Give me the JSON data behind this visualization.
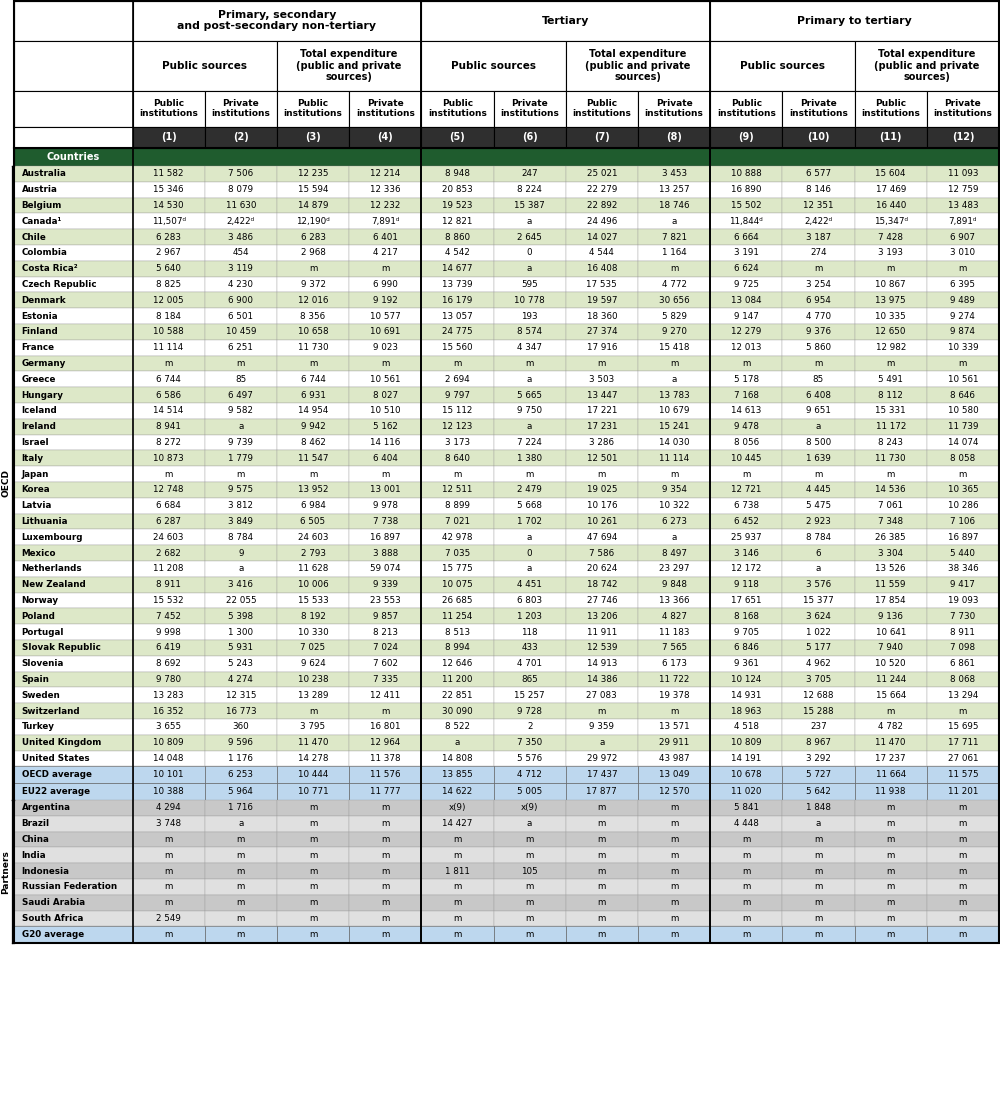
{
  "oecd_rows": [
    [
      "Australia",
      "11 582",
      "7 506",
      "12 235",
      "12 214",
      "8 948",
      "247",
      "25 021",
      "3 453",
      "10 888",
      "6 577",
      "15 604",
      "11 093"
    ],
    [
      "Austria",
      "15 346",
      "8 079",
      "15 594",
      "12 336",
      "20 853",
      "8 224",
      "22 279",
      "13 257",
      "16 890",
      "8 146",
      "17 469",
      "12 759"
    ],
    [
      "Belgium",
      "14 530",
      "11 630",
      "14 879",
      "12 232",
      "19 523",
      "15 387",
      "22 892",
      "18 746",
      "15 502",
      "12 351",
      "16 440",
      "13 483"
    ],
    [
      "Canada¹",
      "11,507ᵈ",
      "2,422ᵈ",
      "12,190ᵈ",
      "7,891ᵈ",
      "12 821",
      "a",
      "24 496",
      "a",
      "11,844ᵈ",
      "2,422ᵈ",
      "15,347ᵈ",
      "7,891ᵈ"
    ],
    [
      "Chile",
      "6 283",
      "3 486",
      "6 283",
      "6 401",
      "8 860",
      "2 645",
      "14 027",
      "7 821",
      "6 664",
      "3 187",
      "7 428",
      "6 907"
    ],
    [
      "Colombia",
      "2 967",
      "454",
      "2 968",
      "4 217",
      "4 542",
      "0",
      "4 544",
      "1 164",
      "3 191",
      "274",
      "3 193",
      "3 010"
    ],
    [
      "Costa Rica²",
      "5 640",
      "3 119",
      "m",
      "m",
      "14 677",
      "a",
      "16 408",
      "m",
      "6 624",
      "m",
      "m",
      "m"
    ],
    [
      "Czech Republic",
      "8 825",
      "4 230",
      "9 372",
      "6 990",
      "13 739",
      "595",
      "17 535",
      "4 772",
      "9 725",
      "3 254",
      "10 867",
      "6 395"
    ],
    [
      "Denmark",
      "12 005",
      "6 900",
      "12 016",
      "9 192",
      "16 179",
      "10 778",
      "19 597",
      "30 656",
      "13 084",
      "6 954",
      "13 975",
      "9 489"
    ],
    [
      "Estonia",
      "8 184",
      "6 501",
      "8 356",
      "10 577",
      "13 057",
      "193",
      "18 360",
      "5 829",
      "9 147",
      "4 770",
      "10 335",
      "9 274"
    ],
    [
      "Finland",
      "10 588",
      "10 459",
      "10 658",
      "10 691",
      "24 775",
      "8 574",
      "27 374",
      "9 270",
      "12 279",
      "9 376",
      "12 650",
      "9 874"
    ],
    [
      "France",
      "11 114",
      "6 251",
      "11 730",
      "9 023",
      "15 560",
      "4 347",
      "17 916",
      "15 418",
      "12 013",
      "5 860",
      "12 982",
      "10 339"
    ],
    [
      "Germany",
      "m",
      "m",
      "m",
      "m",
      "m",
      "m",
      "m",
      "m",
      "m",
      "m",
      "m",
      "m"
    ],
    [
      "Greece",
      "6 744",
      "85",
      "6 744",
      "10 561",
      "2 694",
      "a",
      "3 503",
      "a",
      "5 178",
      "85",
      "5 491",
      "10 561"
    ],
    [
      "Hungary",
      "6 586",
      "6 497",
      "6 931",
      "8 027",
      "9 797",
      "5 665",
      "13 447",
      "13 783",
      "7 168",
      "6 408",
      "8 112",
      "8 646"
    ],
    [
      "Iceland",
      "14 514",
      "9 582",
      "14 954",
      "10 510",
      "15 112",
      "9 750",
      "17 221",
      "10 679",
      "14 613",
      "9 651",
      "15 331",
      "10 580"
    ],
    [
      "Ireland",
      "8 941",
      "a",
      "9 942",
      "5 162",
      "12 123",
      "a",
      "17 231",
      "15 241",
      "9 478",
      "a",
      "11 172",
      "11 739"
    ],
    [
      "Israel",
      "8 272",
      "9 739",
      "8 462",
      "14 116",
      "3 173",
      "7 224",
      "3 286",
      "14 030",
      "8 056",
      "8 500",
      "8 243",
      "14 074"
    ],
    [
      "Italy",
      "10 873",
      "1 779",
      "11 547",
      "6 404",
      "8 640",
      "1 380",
      "12 501",
      "11 114",
      "10 445",
      "1 639",
      "11 730",
      "8 058"
    ],
    [
      "Japan",
      "m",
      "m",
      "m",
      "m",
      "m",
      "m",
      "m",
      "m",
      "m",
      "m",
      "m",
      "m"
    ],
    [
      "Korea",
      "12 748",
      "9 575",
      "13 952",
      "13 001",
      "12 511",
      "2 479",
      "19 025",
      "9 354",
      "12 721",
      "4 445",
      "14 536",
      "10 365"
    ],
    [
      "Latvia",
      "6 684",
      "3 812",
      "6 984",
      "9 978",
      "8 899",
      "5 668",
      "10 176",
      "10 322",
      "6 738",
      "5 475",
      "7 061",
      "10 286"
    ],
    [
      "Lithuania",
      "6 287",
      "3 849",
      "6 505",
      "7 738",
      "7 021",
      "1 702",
      "10 261",
      "6 273",
      "6 452",
      "2 923",
      "7 348",
      "7 106"
    ],
    [
      "Luxembourg",
      "24 603",
      "8 784",
      "24 603",
      "16 897",
      "42 978",
      "a",
      "47 694",
      "a",
      "25 937",
      "8 784",
      "26 385",
      "16 897"
    ],
    [
      "Mexico",
      "2 682",
      "9",
      "2 793",
      "3 888",
      "7 035",
      "0",
      "7 586",
      "8 497",
      "3 146",
      "6",
      "3 304",
      "5 440"
    ],
    [
      "Netherlands",
      "11 208",
      "a",
      "11 628",
      "59 074",
      "15 775",
      "a",
      "20 624",
      "23 297",
      "12 172",
      "a",
      "13 526",
      "38 346"
    ],
    [
      "New Zealand",
      "8 911",
      "3 416",
      "10 006",
      "9 339",
      "10 075",
      "4 451",
      "18 742",
      "9 848",
      "9 118",
      "3 576",
      "11 559",
      "9 417"
    ],
    [
      "Norway",
      "15 532",
      "22 055",
      "15 533",
      "23 553",
      "26 685",
      "6 803",
      "27 746",
      "13 366",
      "17 651",
      "15 377",
      "17 854",
      "19 093"
    ],
    [
      "Poland",
      "7 452",
      "5 398",
      "8 192",
      "9 857",
      "11 254",
      "1 203",
      "13 206",
      "4 827",
      "8 168",
      "3 624",
      "9 136",
      "7 730"
    ],
    [
      "Portugal",
      "9 998",
      "1 300",
      "10 330",
      "8 213",
      "8 513",
      "118",
      "11 911",
      "11 183",
      "9 705",
      "1 022",
      "10 641",
      "8 911"
    ],
    [
      "Slovak Republic",
      "6 419",
      "5 931",
      "7 025",
      "7 024",
      "8 994",
      "433",
      "12 539",
      "7 565",
      "6 846",
      "5 177",
      "7 940",
      "7 098"
    ],
    [
      "Slovenia",
      "8 692",
      "5 243",
      "9 624",
      "7 602",
      "12 646",
      "4 701",
      "14 913",
      "6 173",
      "9 361",
      "4 962",
      "10 520",
      "6 861"
    ],
    [
      "Spain",
      "9 780",
      "4 274",
      "10 238",
      "7 335",
      "11 200",
      "865",
      "14 386",
      "11 722",
      "10 124",
      "3 705",
      "11 244",
      "8 068"
    ],
    [
      "Sweden",
      "13 283",
      "12 315",
      "13 289",
      "12 411",
      "22 851",
      "15 257",
      "27 083",
      "19 378",
      "14 931",
      "12 688",
      "15 664",
      "13 294"
    ],
    [
      "Switzerland",
      "16 352",
      "16 773",
      "m",
      "m",
      "30 090",
      "9 728",
      "m",
      "m",
      "18 963",
      "15 288",
      "m",
      "m"
    ],
    [
      "Turkey",
      "3 655",
      "360",
      "3 795",
      "16 801",
      "8 522",
      "2",
      "9 359",
      "13 571",
      "4 518",
      "237",
      "4 782",
      "15 695"
    ],
    [
      "United Kingdom",
      "10 809",
      "9 596",
      "11 470",
      "12 964",
      "a",
      "7 350",
      "a",
      "29 911",
      "10 809",
      "8 967",
      "11 470",
      "17 711"
    ],
    [
      "United States",
      "14 048",
      "1 176",
      "14 278",
      "11 378",
      "14 808",
      "5 576",
      "29 972",
      "43 987",
      "14 191",
      "3 292",
      "17 237",
      "27 061"
    ]
  ],
  "average_rows": [
    [
      "OECD average",
      "10 101",
      "6 253",
      "10 444",
      "11 576",
      "13 855",
      "4 712",
      "17 437",
      "13 049",
      "10 678",
      "5 727",
      "11 664",
      "11 575"
    ],
    [
      "EU22 average",
      "10 388",
      "5 964",
      "10 771",
      "11 777",
      "14 622",
      "5 005",
      "17 877",
      "12 570",
      "11 020",
      "5 642",
      "11 938",
      "11 201"
    ]
  ],
  "partner_rows": [
    [
      "Argentina",
      "4 294",
      "1 716",
      "m",
      "m",
      "x(9)",
      "x(9)",
      "m",
      "m",
      "5 841",
      "1 848",
      "m",
      "m"
    ],
    [
      "Brazil",
      "3 748",
      "a",
      "m",
      "m",
      "14 427",
      "a",
      "m",
      "m",
      "4 448",
      "a",
      "m",
      "m"
    ],
    [
      "China",
      "m",
      "m",
      "m",
      "m",
      "m",
      "m",
      "m",
      "m",
      "m",
      "m",
      "m",
      "m"
    ],
    [
      "India",
      "m",
      "m",
      "m",
      "m",
      "m",
      "m",
      "m",
      "m",
      "m",
      "m",
      "m",
      "m"
    ],
    [
      "Indonesia",
      "m",
      "m",
      "m",
      "m",
      "1 811",
      "105",
      "m",
      "m",
      "m",
      "m",
      "m",
      "m"
    ],
    [
      "Russian Federation",
      "m",
      "m",
      "m",
      "m",
      "m",
      "m",
      "m",
      "m",
      "m",
      "m",
      "m",
      "m"
    ],
    [
      "Saudi Arabia",
      "m",
      "m",
      "m",
      "m",
      "m",
      "m",
      "m",
      "m",
      "m",
      "m",
      "m",
      "m"
    ],
    [
      "South Africa",
      "2 549",
      "m",
      "m",
      "m",
      "m",
      "m",
      "m",
      "m",
      "m",
      "m",
      "m",
      "m"
    ]
  ],
  "g20_row": [
    "G20 average",
    "m",
    "m",
    "m",
    "m",
    "m",
    "m",
    "m",
    "m",
    "m",
    "m",
    "m",
    "m"
  ],
  "colors": {
    "header_dark_green": "#1F5C2E",
    "row_alt_green": "#DDE8C8",
    "row_white": "#FFFFFF",
    "avg_blue": "#BDD7EE",
    "partner_gray_dark": "#C8C8C8",
    "partner_gray_light": "#E0E0E0",
    "num_row_dark": "#2F2F2F",
    "border_heavy": "#000000",
    "border_light": "#888888"
  }
}
